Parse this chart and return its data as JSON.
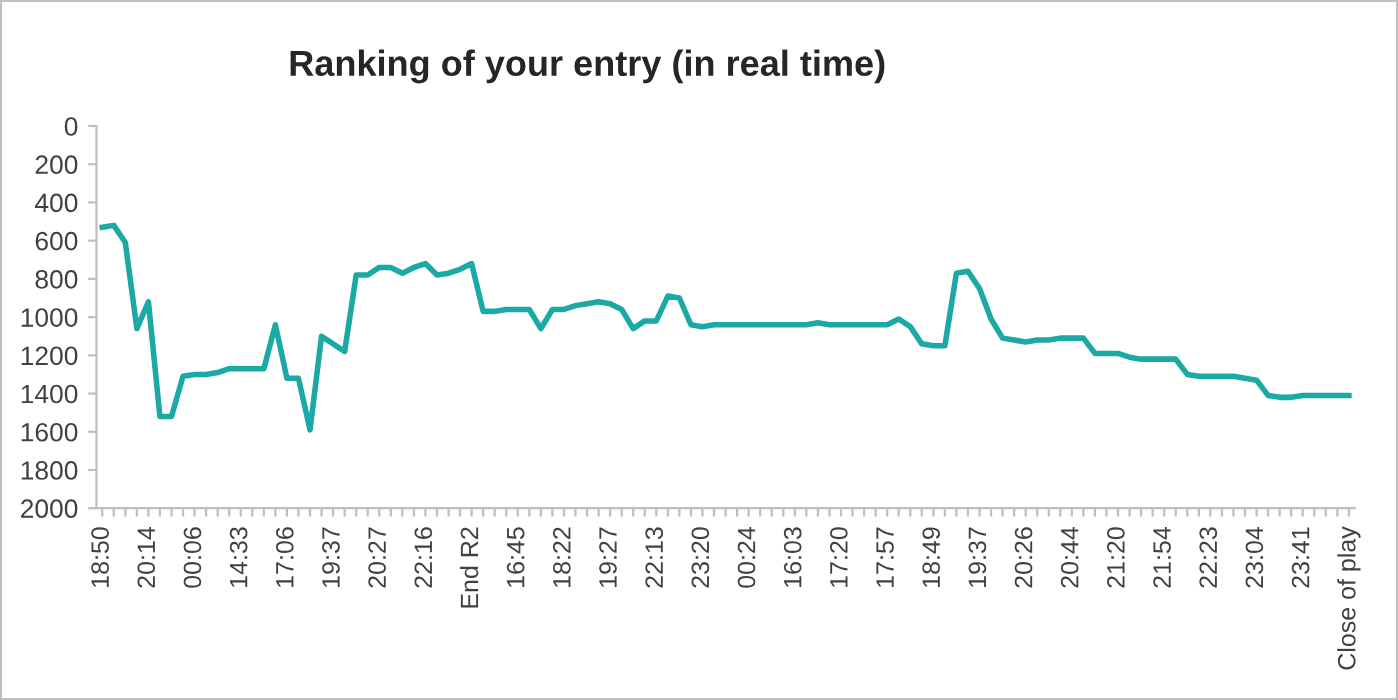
{
  "chart_data": {
    "type": "line",
    "title": "Ranking of your entry (in real time)",
    "categories": [
      "18:50",
      null,
      null,
      null,
      "20:14",
      null,
      null,
      null,
      "00:06",
      null,
      null,
      null,
      "14:33",
      null,
      null,
      null,
      "17:06",
      null,
      null,
      null,
      "19:37",
      null,
      null,
      null,
      "20:27",
      null,
      null,
      null,
      "22:16",
      null,
      null,
      null,
      "End R2",
      null,
      null,
      null,
      "16:45",
      null,
      null,
      null,
      "18:22",
      null,
      null,
      null,
      "19:27",
      null,
      null,
      null,
      "22:13",
      null,
      null,
      null,
      "23:20",
      null,
      null,
      null,
      "00:24",
      null,
      null,
      null,
      "16:03",
      null,
      null,
      null,
      "17:20",
      null,
      null,
      null,
      "17:57",
      null,
      null,
      null,
      "18:49",
      null,
      null,
      null,
      "19:37",
      null,
      null,
      null,
      "20:26",
      null,
      null,
      null,
      "20:44",
      null,
      null,
      null,
      "21:20",
      null,
      null,
      null,
      "21:54",
      null,
      null,
      null,
      "22:23",
      null,
      null,
      null,
      "23:04",
      null,
      null,
      null,
      "23:41",
      null,
      null,
      null,
      "Close of play"
    ],
    "series": [
      {
        "color": "#1aa9a5",
        "values": [
          530,
          520,
          610,
          1060,
          920,
          1520,
          1520,
          1310,
          1300,
          1300,
          1290,
          1270,
          1270,
          1270,
          1270,
          1040,
          1320,
          1320,
          1590,
          1100,
          1140,
          1180,
          780,
          780,
          740,
          740,
          770,
          740,
          720,
          780,
          770,
          750,
          720,
          970,
          970,
          960,
          960,
          960,
          1060,
          960,
          960,
          940,
          930,
          920,
          930,
          960,
          1060,
          1020,
          1020,
          890,
          900,
          1040,
          1050,
          1040,
          1040,
          1040,
          1040,
          1040,
          1040,
          1040,
          1040,
          1040,
          1030,
          1040,
          1040,
          1040,
          1040,
          1040,
          1040,
          1010,
          1050,
          1140,
          1150,
          1150,
          770,
          760,
          850,
          1010,
          1110,
          1120,
          1130,
          1120,
          1120,
          1110,
          1110,
          1110,
          1190,
          1190,
          1190,
          1210,
          1220,
          1220,
          1220,
          1220,
          1300,
          1310,
          1310,
          1310,
          1310,
          1320,
          1330,
          1410,
          1420,
          1420,
          1410,
          1410,
          1410,
          1410,
          1410
        ]
      }
    ],
    "ylim": [
      2000,
      0
    ],
    "yticks": [
      0,
      200,
      400,
      600,
      800,
      1000,
      1200,
      1400,
      1600,
      1800,
      2000
    ],
    "grid": false,
    "marker": "none",
    "line_style": "solid"
  }
}
